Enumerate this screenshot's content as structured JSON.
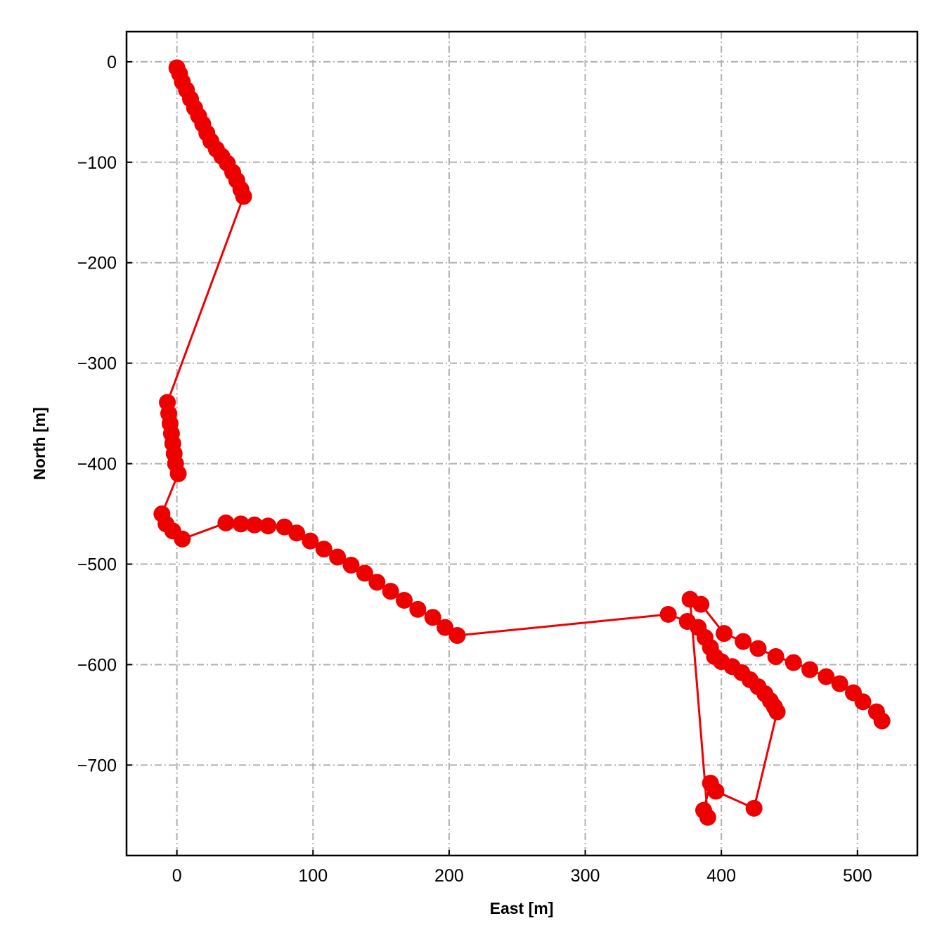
{
  "chart_data": {
    "type": "line",
    "xlabel": "East [m]",
    "ylabel": "North [m]",
    "x": [
      0,
      2,
      4,
      7,
      10,
      13,
      16,
      19,
      22,
      25,
      29,
      33,
      37,
      41,
      44,
      47,
      49,
      -7,
      -6,
      -5,
      -4,
      -3,
      -2,
      -1,
      1,
      -11,
      -8,
      -3,
      4,
      36,
      47,
      57,
      67,
      79,
      88,
      98,
      108,
      118,
      128,
      138,
      147,
      157,
      167,
      177,
      188,
      197,
      206,
      361,
      375,
      383,
      388,
      392,
      395,
      400,
      408,
      415,
      421,
      427,
      432,
      436,
      439,
      441,
      424,
      396,
      392,
      387,
      390,
      377,
      385,
      402,
      416,
      427,
      440,
      453,
      465,
      477,
      487,
      497,
      504,
      514,
      518
    ],
    "series": [
      {
        "name": "track",
        "color": "#ee0000",
        "values": [
          -6,
          -12,
          -20,
          -28,
          -37,
          -46,
          -54,
          -62,
          -71,
          -79,
          -87,
          -94,
          -101,
          -110,
          -118,
          -127,
          -134,
          -339,
          -350,
          -360,
          -370,
          -380,
          -390,
          -400,
          -410,
          -450,
          -460,
          -467,
          -475,
          -459,
          -460,
          -461,
          -462,
          -463,
          -469,
          -477,
          -485,
          -493,
          -501,
          -509,
          -518,
          -527,
          -536,
          -545,
          -553,
          -563,
          -571,
          -550,
          -557,
          -563,
          -573,
          -583,
          -592,
          -597,
          -602,
          -608,
          -615,
          -622,
          -629,
          -636,
          -642,
          -647,
          -743,
          -726,
          -718,
          -745,
          -752,
          -535,
          -540,
          -569,
          -577,
          -584,
          -592,
          -598,
          -605,
          -612,
          -619,
          -628,
          -637,
          -647,
          -656
        ]
      }
    ],
    "xlim": [
      -37,
      544
    ],
    "ylim": [
      -790,
      30
    ],
    "xticks": [
      0,
      100,
      200,
      300,
      400,
      500
    ],
    "yticks": [
      0,
      {
        "value": -100,
        "label": "−100"
      },
      {
        "value": -200,
        "label": "−200"
      },
      {
        "value": -300,
        "label": "−300"
      },
      {
        "value": -400,
        "label": "−400"
      },
      {
        "value": -500,
        "label": "−500"
      },
      {
        "value": -600,
        "label": "−600"
      },
      {
        "value": -700,
        "label": "−700"
      }
    ],
    "grid": true
  }
}
